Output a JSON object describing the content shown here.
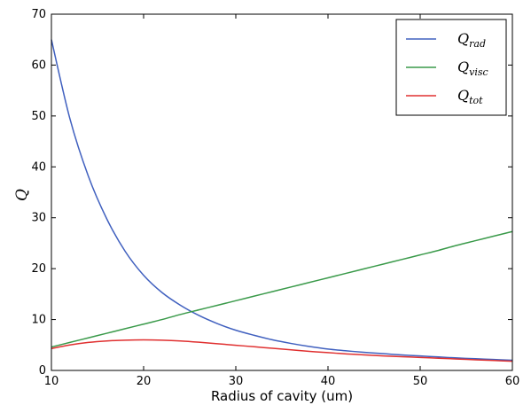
{
  "chart_data": {
    "type": "line",
    "title": "",
    "xlabel": "Radius of cavity (um)",
    "ylabel": "Q",
    "xlim": [
      10,
      60
    ],
    "ylim": [
      0,
      70
    ],
    "xticks": [
      10,
      20,
      30,
      40,
      50,
      60
    ],
    "yticks": [
      0,
      10,
      20,
      30,
      40,
      50,
      60,
      70
    ],
    "grid": false,
    "legend_position": "top-right",
    "x": [
      10,
      12,
      14,
      16,
      18,
      20,
      22,
      24,
      26,
      28,
      30,
      32,
      34,
      36,
      38,
      40,
      42,
      44,
      46,
      48,
      50,
      52,
      54,
      56,
      58,
      60
    ],
    "series": [
      {
        "name": "Q_rad",
        "legend_main": "Q",
        "legend_sub": "rad",
        "color": "#4060bf",
        "values": [
          65.0,
          49.5,
          38.2,
          29.8,
          23.4,
          18.7,
          15.3,
          12.8,
          10.8,
          9.2,
          7.9,
          6.9,
          6.0,
          5.3,
          4.7,
          4.2,
          3.85,
          3.55,
          3.3,
          3.05,
          2.85,
          2.65,
          2.45,
          2.3,
          2.15,
          2.0
        ]
      },
      {
        "name": "Q_visc",
        "legend_main": "Q",
        "legend_sub": "visc",
        "color": "#3a9a4a",
        "values": [
          4.6,
          5.5,
          6.4,
          7.3,
          8.2,
          9.1,
          10.0,
          11.0,
          11.9,
          12.8,
          13.7,
          14.6,
          15.5,
          16.4,
          17.3,
          18.2,
          19.1,
          20.0,
          20.9,
          21.8,
          22.7,
          23.6,
          24.6,
          25.5,
          26.4,
          27.3
        ]
      },
      {
        "name": "Q_tot",
        "legend_main": "Q",
        "legend_sub": "tot",
        "color": "#e03030",
        "values": [
          4.3,
          5.0,
          5.5,
          5.8,
          5.95,
          6.0,
          5.95,
          5.8,
          5.55,
          5.25,
          4.95,
          4.65,
          4.35,
          4.05,
          3.75,
          3.5,
          3.25,
          3.05,
          2.85,
          2.7,
          2.55,
          2.4,
          2.25,
          2.1,
          1.95,
          1.8
        ]
      }
    ]
  }
}
